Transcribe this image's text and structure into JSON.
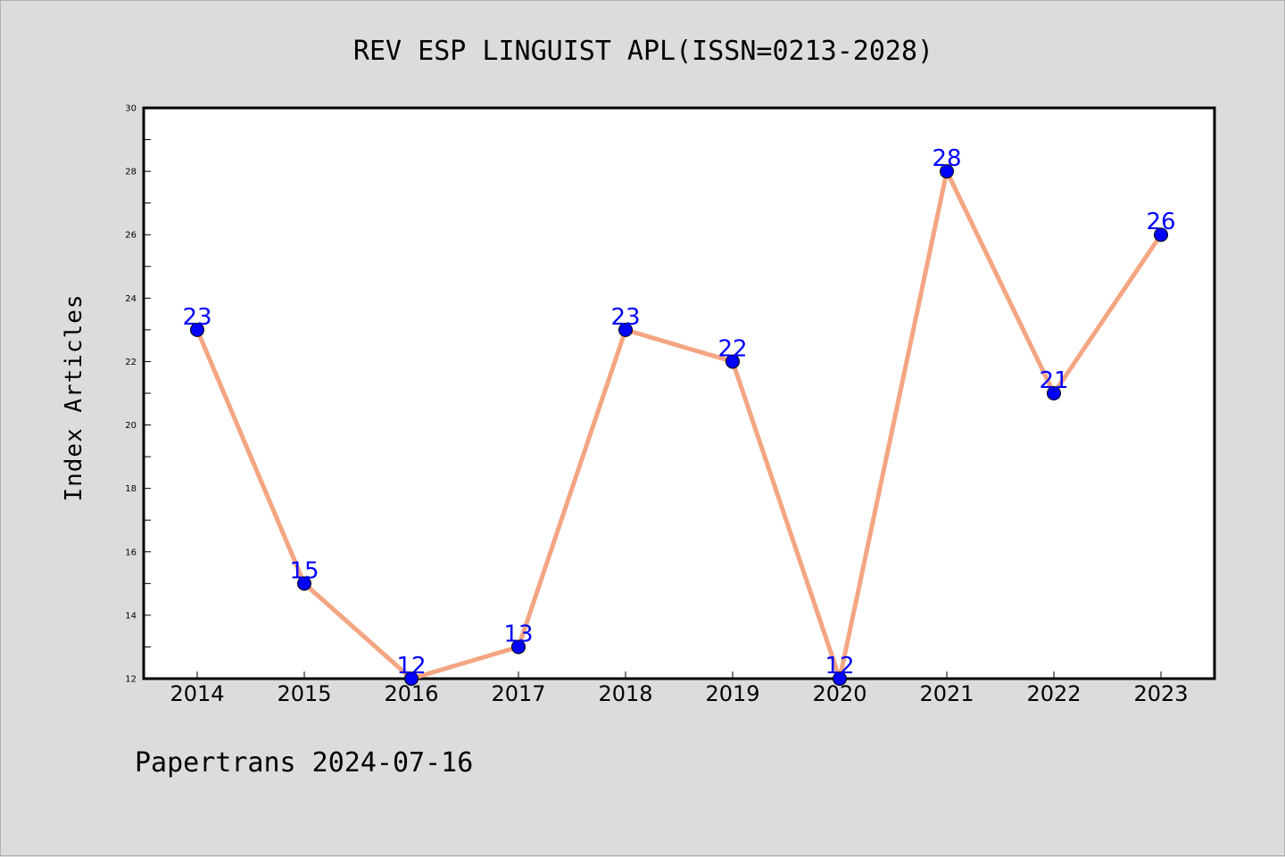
{
  "chart_data": {
    "type": "line",
    "title": "REV ESP LINGUIST APL(ISSN=0213-2028)",
    "ylabel": "Index Articles",
    "xlabel": "",
    "categories": [
      "2014",
      "2015",
      "2016",
      "2017",
      "2018",
      "2019",
      "2020",
      "2021",
      "2022",
      "2023"
    ],
    "values": [
      23,
      15,
      12,
      13,
      23,
      22,
      12,
      28,
      21,
      26
    ],
    "ylim": [
      12,
      30
    ],
    "yticks": [
      "12",
      "14",
      "16",
      "18",
      "20",
      "22",
      "24",
      "26",
      "28",
      "30"
    ],
    "grid": false,
    "line_color": "#f4a582",
    "marker_color": "#0000ff",
    "label_color": "#0000ff",
    "plot_background": "#ffffff",
    "page_background": "#dcdcdc"
  },
  "footer": "Papertrans 2024-07-16"
}
